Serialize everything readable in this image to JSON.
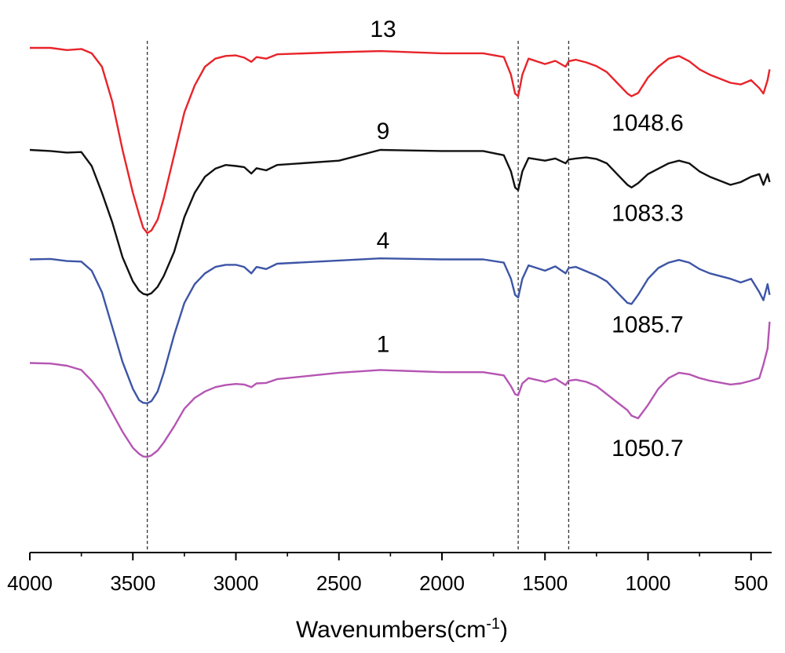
{
  "chart_data": {
    "type": "line",
    "title": "",
    "xlabel": "Wavenumbers(cm",
    "xlabel_sup": "-1",
    "xlabel_close": ")",
    "ylabel": "",
    "xlim": [
      4000,
      400
    ],
    "x_reversed": true,
    "x_ticks": [
      4000,
      3500,
      3000,
      2500,
      2000,
      1500,
      1000,
      500
    ],
    "x_tick_labels": [
      "4000",
      "3500",
      "3000",
      "2500",
      "2000",
      "1500",
      "1000",
      "500"
    ],
    "y_axis_visible": false,
    "y_units": "relative transmittance (stacked, offset traces)",
    "ylim": [
      0,
      100
    ],
    "reference_lines": [
      3430,
      1630,
      1385
    ],
    "series": [
      {
        "name": "13",
        "color": "#e8242a",
        "peak_label": "1048.6",
        "x": [
          4000,
          3900,
          3820,
          3750,
          3700,
          3650,
          3600,
          3550,
          3500,
          3470,
          3450,
          3430,
          3410,
          3380,
          3350,
          3300,
          3250,
          3200,
          3150,
          3100,
          3050,
          3000,
          2960,
          2925,
          2900,
          2853,
          2800,
          2500,
          2300,
          2000,
          1800,
          1700,
          1665,
          1645,
          1630,
          1610,
          1580,
          1500,
          1450,
          1400,
          1385,
          1350,
          1300,
          1250,
          1200,
          1150,
          1100,
          1080,
          1048,
          1000,
          950,
          900,
          850,
          800,
          750,
          700,
          600,
          550,
          500,
          460,
          440,
          420,
          410
        ],
        "y": [
          94.0,
          94.0,
          93.6,
          93.8,
          93.0,
          90.5,
          84.0,
          75.0,
          67.0,
          63.0,
          60.5,
          59.5,
          60.0,
          62.0,
          66.0,
          74.0,
          82.0,
          87.0,
          90.5,
          92.0,
          92.5,
          92.6,
          92.2,
          91.4,
          92.3,
          92.0,
          92.8,
          93.2,
          93.4,
          93.0,
          93.0,
          92.3,
          89.0,
          85.5,
          85.0,
          89.0,
          92.0,
          91.0,
          91.6,
          90.5,
          91.5,
          91.8,
          91.3,
          90.6,
          89.5,
          87.5,
          85.5,
          85.0,
          85.6,
          88.5,
          90.5,
          92.0,
          92.5,
          91.5,
          90.0,
          89.0,
          87.5,
          87.2,
          88.0,
          86.5,
          85.5,
          88.0,
          90.0
        ]
      },
      {
        "name": "9",
        "color": "#111111",
        "peak_label": "1083.3",
        "x": [
          4000,
          3900,
          3820,
          3750,
          3700,
          3650,
          3600,
          3550,
          3500,
          3470,
          3450,
          3430,
          3410,
          3380,
          3350,
          3300,
          3250,
          3200,
          3150,
          3100,
          3050,
          3000,
          2960,
          2925,
          2900,
          2853,
          2800,
          2500,
          2300,
          2000,
          1800,
          1700,
          1665,
          1645,
          1630,
          1610,
          1580,
          1500,
          1450,
          1400,
          1385,
          1350,
          1300,
          1250,
          1200,
          1150,
          1100,
          1080,
          1048,
          1000,
          950,
          900,
          850,
          800,
          750,
          700,
          600,
          550,
          500,
          460,
          440,
          420,
          410
        ],
        "y": [
          75.0,
          74.8,
          74.5,
          74.6,
          72.0,
          67.0,
          61.5,
          55.0,
          50.5,
          48.8,
          48.2,
          48.0,
          48.3,
          49.5,
          51.5,
          56.0,
          62.5,
          67.0,
          70.0,
          71.5,
          72.2,
          72.0,
          71.8,
          70.6,
          71.6,
          71.2,
          72.2,
          73.0,
          75.0,
          74.8,
          74.8,
          74.0,
          71.0,
          68.0,
          67.5,
          71.0,
          73.5,
          73.0,
          73.4,
          72.5,
          73.2,
          73.4,
          73.6,
          73.3,
          72.5,
          70.5,
          68.5,
          68.0,
          68.8,
          70.5,
          71.5,
          72.5,
          73.0,
          72.5,
          71.0,
          70.0,
          68.5,
          69.0,
          70.0,
          70.5,
          68.5,
          70.5,
          69.0
        ]
      },
      {
        "name": "4",
        "color": "#3d55a6",
        "peak_label": "1085.7",
        "x": [
          4000,
          3900,
          3820,
          3750,
          3700,
          3650,
          3600,
          3550,
          3500,
          3470,
          3450,
          3430,
          3410,
          3380,
          3350,
          3300,
          3250,
          3200,
          3150,
          3100,
          3050,
          3000,
          2960,
          2925,
          2900,
          2853,
          2800,
          2500,
          2300,
          2000,
          1800,
          1700,
          1665,
          1645,
          1630,
          1610,
          1580,
          1500,
          1450,
          1400,
          1385,
          1350,
          1300,
          1250,
          1200,
          1150,
          1100,
          1080,
          1048,
          1000,
          950,
          900,
          850,
          800,
          750,
          700,
          600,
          550,
          500,
          460,
          440,
          420,
          410
        ],
        "y": [
          54.6,
          54.7,
          54.3,
          54.2,
          52.5,
          48.5,
          42.0,
          35.5,
          30.5,
          28.4,
          27.9,
          27.8,
          28.2,
          30.0,
          33.5,
          40.5,
          46.5,
          50.0,
          52.0,
          53.2,
          53.6,
          53.6,
          53.2,
          52.0,
          53.2,
          52.8,
          53.8,
          54.4,
          54.8,
          54.6,
          54.6,
          54.0,
          51.0,
          48.0,
          47.5,
          51.0,
          53.5,
          52.5,
          53.3,
          52.0,
          53.0,
          53.2,
          52.4,
          51.6,
          50.5,
          48.5,
          46.5,
          46.3,
          48.0,
          51.0,
          53.0,
          54.0,
          54.5,
          54.0,
          52.8,
          52.0,
          51.0,
          50.3,
          51.0,
          48.5,
          47.0,
          50.0,
          48.0
        ]
      },
      {
        "name": "1",
        "color": "#b555b3",
        "peak_label": "1050.7",
        "x": [
          4000,
          3900,
          3820,
          3750,
          3700,
          3650,
          3600,
          3550,
          3500,
          3470,
          3450,
          3430,
          3410,
          3380,
          3350,
          3300,
          3250,
          3200,
          3150,
          3100,
          3050,
          3000,
          2960,
          2925,
          2900,
          2853,
          2800,
          2500,
          2300,
          2000,
          1800,
          1700,
          1665,
          1645,
          1630,
          1610,
          1580,
          1500,
          1450,
          1400,
          1385,
          1350,
          1300,
          1250,
          1200,
          1150,
          1100,
          1080,
          1048,
          1000,
          950,
          900,
          850,
          800,
          750,
          700,
          600,
          550,
          500,
          460,
          440,
          420,
          410
        ],
        "y": [
          35.3,
          35.2,
          34.8,
          34.0,
          32.0,
          29.5,
          26.0,
          22.5,
          19.5,
          18.4,
          17.9,
          17.8,
          18.1,
          19.0,
          20.5,
          23.5,
          26.8,
          28.8,
          30.0,
          30.8,
          31.2,
          31.4,
          31.3,
          30.8,
          31.5,
          31.6,
          32.3,
          33.5,
          34.0,
          33.6,
          33.6,
          33.0,
          31.0,
          29.5,
          29.3,
          31.5,
          32.5,
          31.8,
          32.4,
          31.2,
          32.0,
          32.2,
          31.8,
          31.0,
          29.5,
          28.0,
          26.5,
          25.5,
          25.0,
          27.5,
          30.5,
          32.5,
          33.5,
          33.2,
          32.5,
          32.0,
          31.3,
          31.5,
          32.0,
          32.5,
          35.0,
          38.0,
          43.0
        ]
      }
    ]
  }
}
